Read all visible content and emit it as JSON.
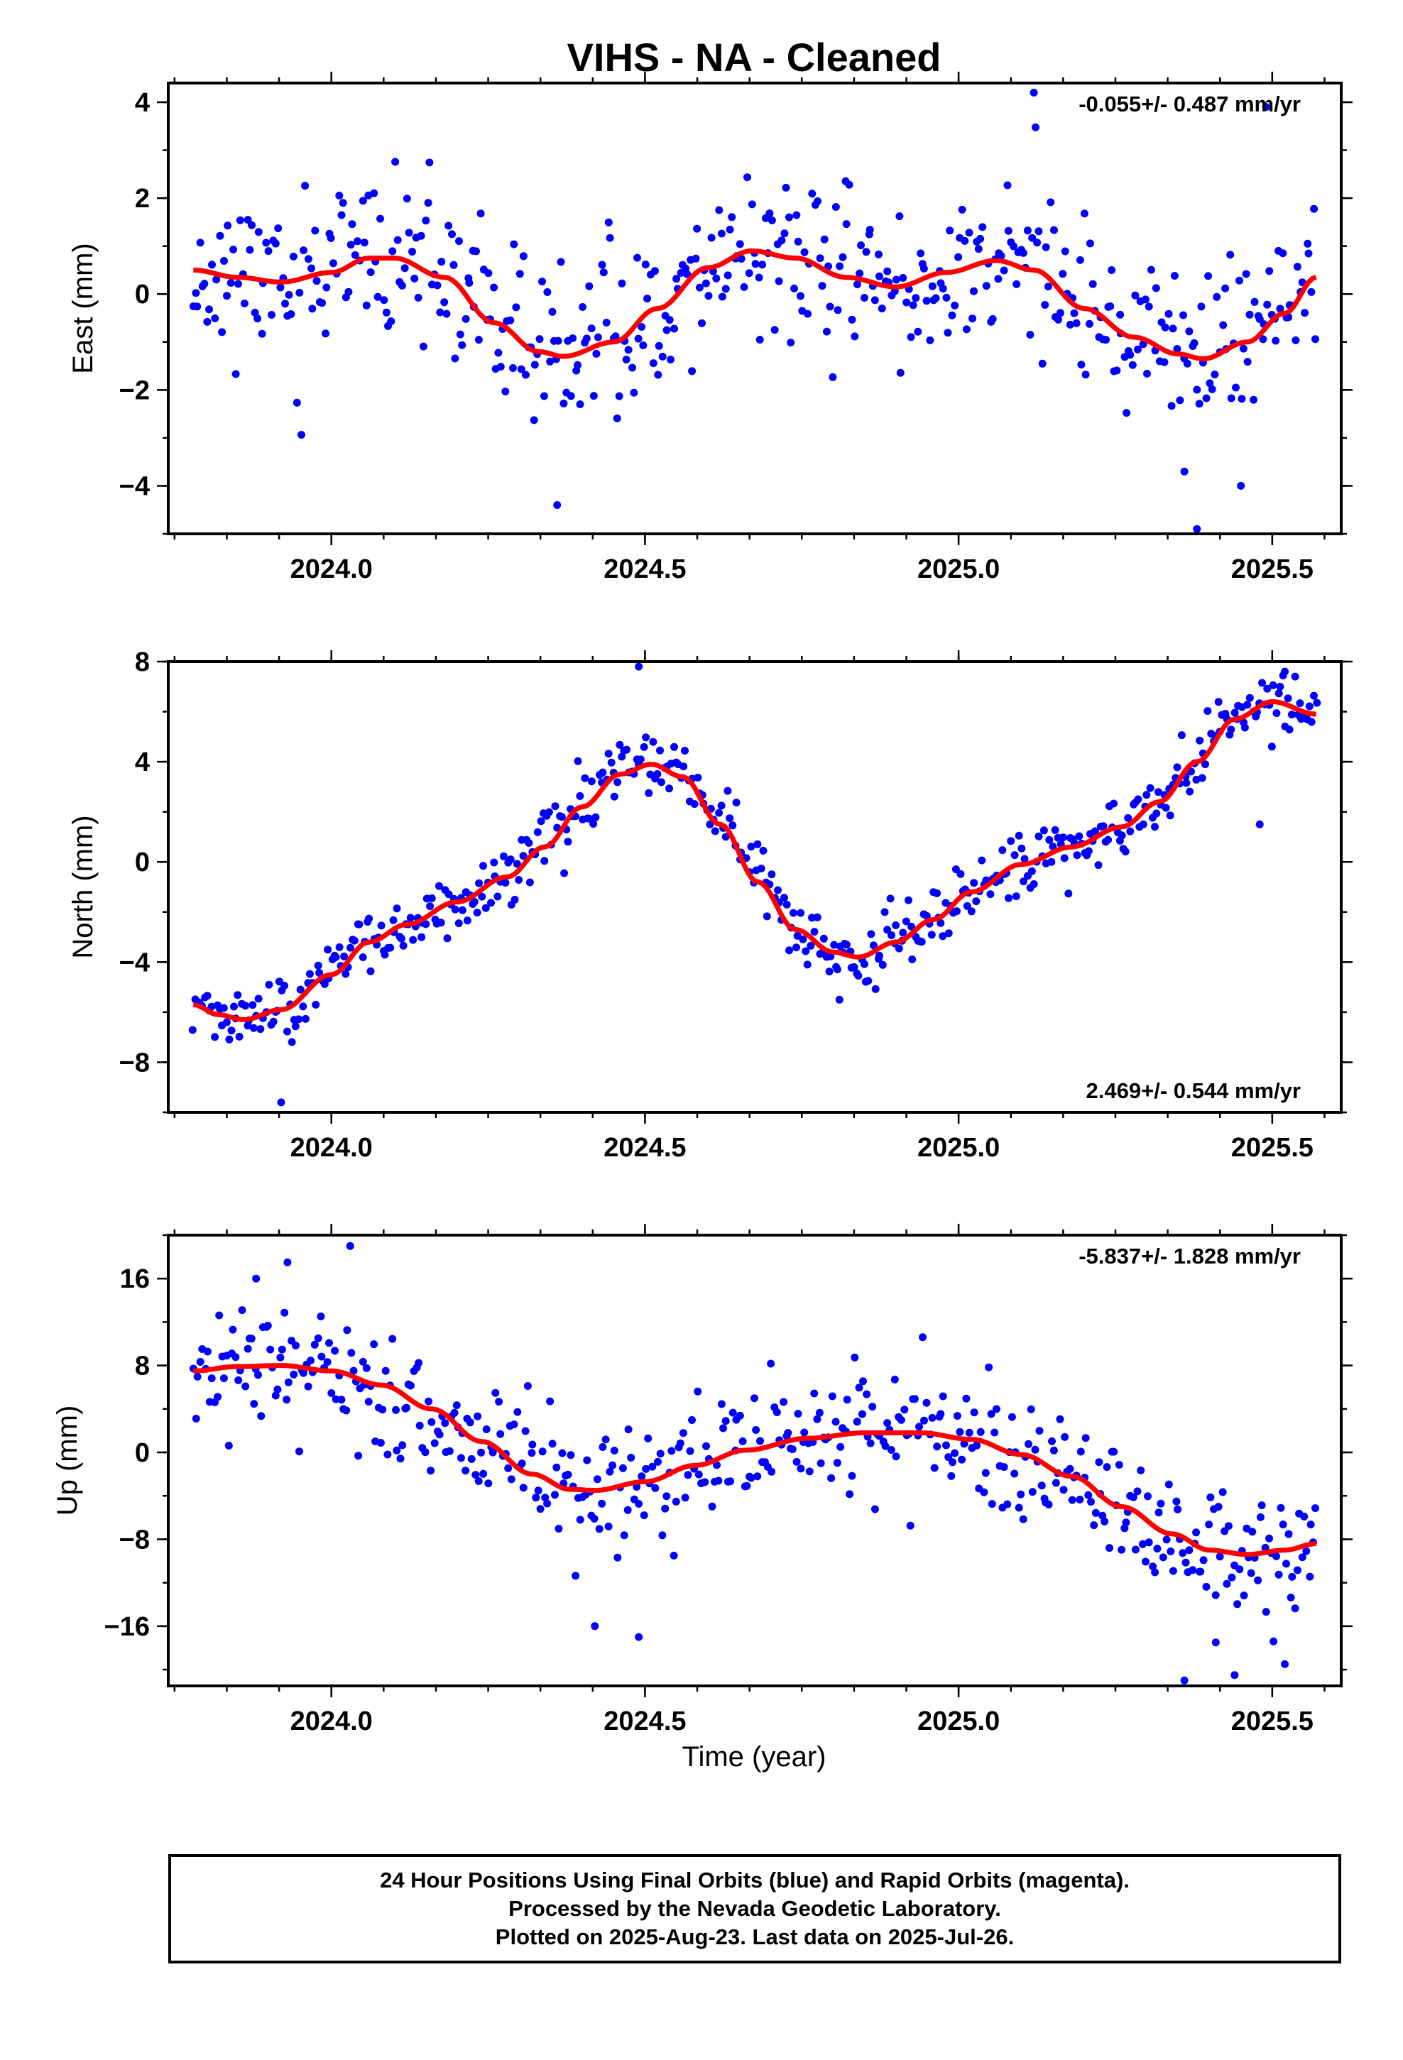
{
  "title": "VIHS  - NA - Cleaned",
  "xlabel": "Time (year)",
  "footer": {
    "line1": "24 Hour Positions Using Final Orbits (blue) and Rapid Orbits (magenta).",
    "line2": "Processed by the Nevada Geodetic Laboratory.",
    "line3": "Plotted on 2025-Aug-23. Last data on 2025-Jul-26."
  },
  "colors": {
    "points": "#0000ff",
    "fit": "#ff0000"
  },
  "chart_data": [
    {
      "type": "scatter",
      "component": "east",
      "ylabel": "East (mm)",
      "rate": "-0.055+/- 0.487 mm/yr",
      "rate_position": "top-right",
      "xlim": [
        2023.74,
        2025.61
      ],
      "ylim": [
        -5.0,
        4.4
      ],
      "yticks": [
        4,
        2,
        0,
        -2,
        -4
      ],
      "ytick_labels": [
        "4",
        "2",
        "0",
        "−2",
        "−4"
      ],
      "xticks": [
        2024.0,
        2024.5,
        2025.0,
        2025.5
      ],
      "xtick_labels": [
        "2024.0",
        "2024.5",
        "2025.0",
        "2025.5"
      ],
      "fit_curve": [
        [
          2023.78,
          0.5
        ],
        [
          2023.85,
          0.35
        ],
        [
          2023.92,
          0.25
        ],
        [
          2024.0,
          0.45
        ],
        [
          2024.06,
          0.75
        ],
        [
          2024.1,
          0.75
        ],
        [
          2024.18,
          0.35
        ],
        [
          2024.26,
          -0.6
        ],
        [
          2024.33,
          -1.2
        ],
        [
          2024.37,
          -1.3
        ],
        [
          2024.45,
          -1.0
        ],
        [
          2024.52,
          -0.3
        ],
        [
          2024.6,
          0.55
        ],
        [
          2024.67,
          0.9
        ],
        [
          2024.74,
          0.75
        ],
        [
          2024.82,
          0.35
        ],
        [
          2024.9,
          0.15
        ],
        [
          2024.98,
          0.45
        ],
        [
          2025.06,
          0.7
        ],
        [
          2025.12,
          0.5
        ],
        [
          2025.2,
          -0.3
        ],
        [
          2025.28,
          -0.9
        ],
        [
          2025.35,
          -1.25
        ],
        [
          2025.39,
          -1.35
        ],
        [
          2025.46,
          -1.0
        ],
        [
          2025.52,
          -0.4
        ],
        [
          2025.57,
          0.35
        ]
      ],
      "points_summary": "Daily positions scattered about the fit curve, approx 1.2 mm spread",
      "outliers": [
        [
          2025.12,
          4.2
        ],
        [
          2025.49,
          3.9
        ],
        [
          2024.36,
          -4.4
        ],
        [
          2025.38,
          -4.9
        ],
        [
          2025.45,
          -4.0
        ],
        [
          2025.36,
          -3.7
        ]
      ]
    },
    {
      "type": "scatter",
      "component": "north",
      "ylabel": "North (mm)",
      "rate": "2.469+/- 0.544 mm/yr",
      "rate_position": "bottom-right",
      "xlim": [
        2023.74,
        2025.61
      ],
      "ylim": [
        -10.0,
        8.0
      ],
      "yticks": [
        8,
        4,
        0,
        -4,
        -8
      ],
      "ytick_labels": [
        "8",
        "4",
        "0",
        "−4",
        "−8"
      ],
      "xticks": [
        2024.0,
        2024.5,
        2025.0,
        2025.5
      ],
      "xtick_labels": [
        "2024.0",
        "2024.5",
        "2025.0",
        "2025.5"
      ],
      "fit_curve": [
        [
          2023.78,
          -5.7
        ],
        [
          2023.82,
          -6.1
        ],
        [
          2023.86,
          -6.3
        ],
        [
          2023.92,
          -5.9
        ],
        [
          2024.0,
          -4.5
        ],
        [
          2024.06,
          -3.2
        ],
        [
          2024.12,
          -2.5
        ],
        [
          2024.2,
          -1.6
        ],
        [
          2024.28,
          -0.6
        ],
        [
          2024.34,
          0.6
        ],
        [
          2024.4,
          2.2
        ],
        [
          2024.46,
          3.5
        ],
        [
          2024.51,
          3.9
        ],
        [
          2024.56,
          3.4
        ],
        [
          2024.62,
          1.5
        ],
        [
          2024.68,
          -0.8
        ],
        [
          2024.74,
          -2.7
        ],
        [
          2024.8,
          -3.6
        ],
        [
          2024.84,
          -3.8
        ],
        [
          2024.9,
          -3.2
        ],
        [
          2024.96,
          -2.3
        ],
        [
          2025.02,
          -1.2
        ],
        [
          2025.1,
          -0.1
        ],
        [
          2025.18,
          0.6
        ],
        [
          2025.26,
          1.4
        ],
        [
          2025.32,
          2.4
        ],
        [
          2025.38,
          4.0
        ],
        [
          2025.44,
          5.7
        ],
        [
          2025.5,
          6.4
        ],
        [
          2025.57,
          5.9
        ]
      ],
      "points_summary": "Daily positions scattered about the fit curve, approx 0.9 mm spread",
      "outliers": [
        [
          2023.92,
          -9.6
        ],
        [
          2024.49,
          7.8
        ],
        [
          2024.81,
          -5.5
        ],
        [
          2025.48,
          1.5
        ],
        [
          2025.52,
          7.6
        ]
      ]
    },
    {
      "type": "scatter",
      "component": "up",
      "ylabel": "Up (mm)",
      "rate": "-5.837+/- 1.828 mm/yr",
      "rate_position": "top-right",
      "xlim": [
        2023.74,
        2025.61
      ],
      "ylim": [
        -21.5,
        20.0
      ],
      "yticks": [
        16,
        8,
        0,
        -8,
        -16
      ],
      "ytick_labels": [
        "16",
        "8",
        "0",
        "−8",
        "−16"
      ],
      "xticks": [
        2024.0,
        2024.5,
        2025.0,
        2025.5
      ],
      "xtick_labels": [
        "2024.0",
        "2024.5",
        "2025.0",
        "2025.5"
      ],
      "fit_curve": [
        [
          2023.78,
          7.5
        ],
        [
          2023.85,
          7.9
        ],
        [
          2023.92,
          8.0
        ],
        [
          2024.0,
          7.5
        ],
        [
          2024.08,
          6.2
        ],
        [
          2024.16,
          4.0
        ],
        [
          2024.24,
          1.0
        ],
        [
          2024.32,
          -2.0
        ],
        [
          2024.38,
          -3.4
        ],
        [
          2024.42,
          -3.5
        ],
        [
          2024.5,
          -2.7
        ],
        [
          2024.58,
          -1.2
        ],
        [
          2024.66,
          0.2
        ],
        [
          2024.76,
          1.3
        ],
        [
          2024.85,
          1.8
        ],
        [
          2024.94,
          1.8
        ],
        [
          2025.02,
          1.2
        ],
        [
          2025.1,
          -0.2
        ],
        [
          2025.18,
          -2.2
        ],
        [
          2025.26,
          -5.0
        ],
        [
          2025.34,
          -7.5
        ],
        [
          2025.4,
          -9.0
        ],
        [
          2025.46,
          -9.4
        ],
        [
          2025.52,
          -9.0
        ],
        [
          2025.57,
          -8.4
        ]
      ],
      "points_summary": "Daily positions scattered about the fit curve, approx 4 mm spread",
      "outliers": [
        [
          2024.03,
          19.0
        ],
        [
          2023.93,
          17.5
        ],
        [
          2023.88,
          16.0
        ],
        [
          2025.36,
          -21.0
        ],
        [
          2025.44,
          -20.5
        ],
        [
          2025.52,
          -19.5
        ],
        [
          2024.42,
          -16.0
        ],
        [
          2024.49,
          -17.0
        ],
        [
          2025.41,
          -17.5
        ]
      ]
    }
  ]
}
